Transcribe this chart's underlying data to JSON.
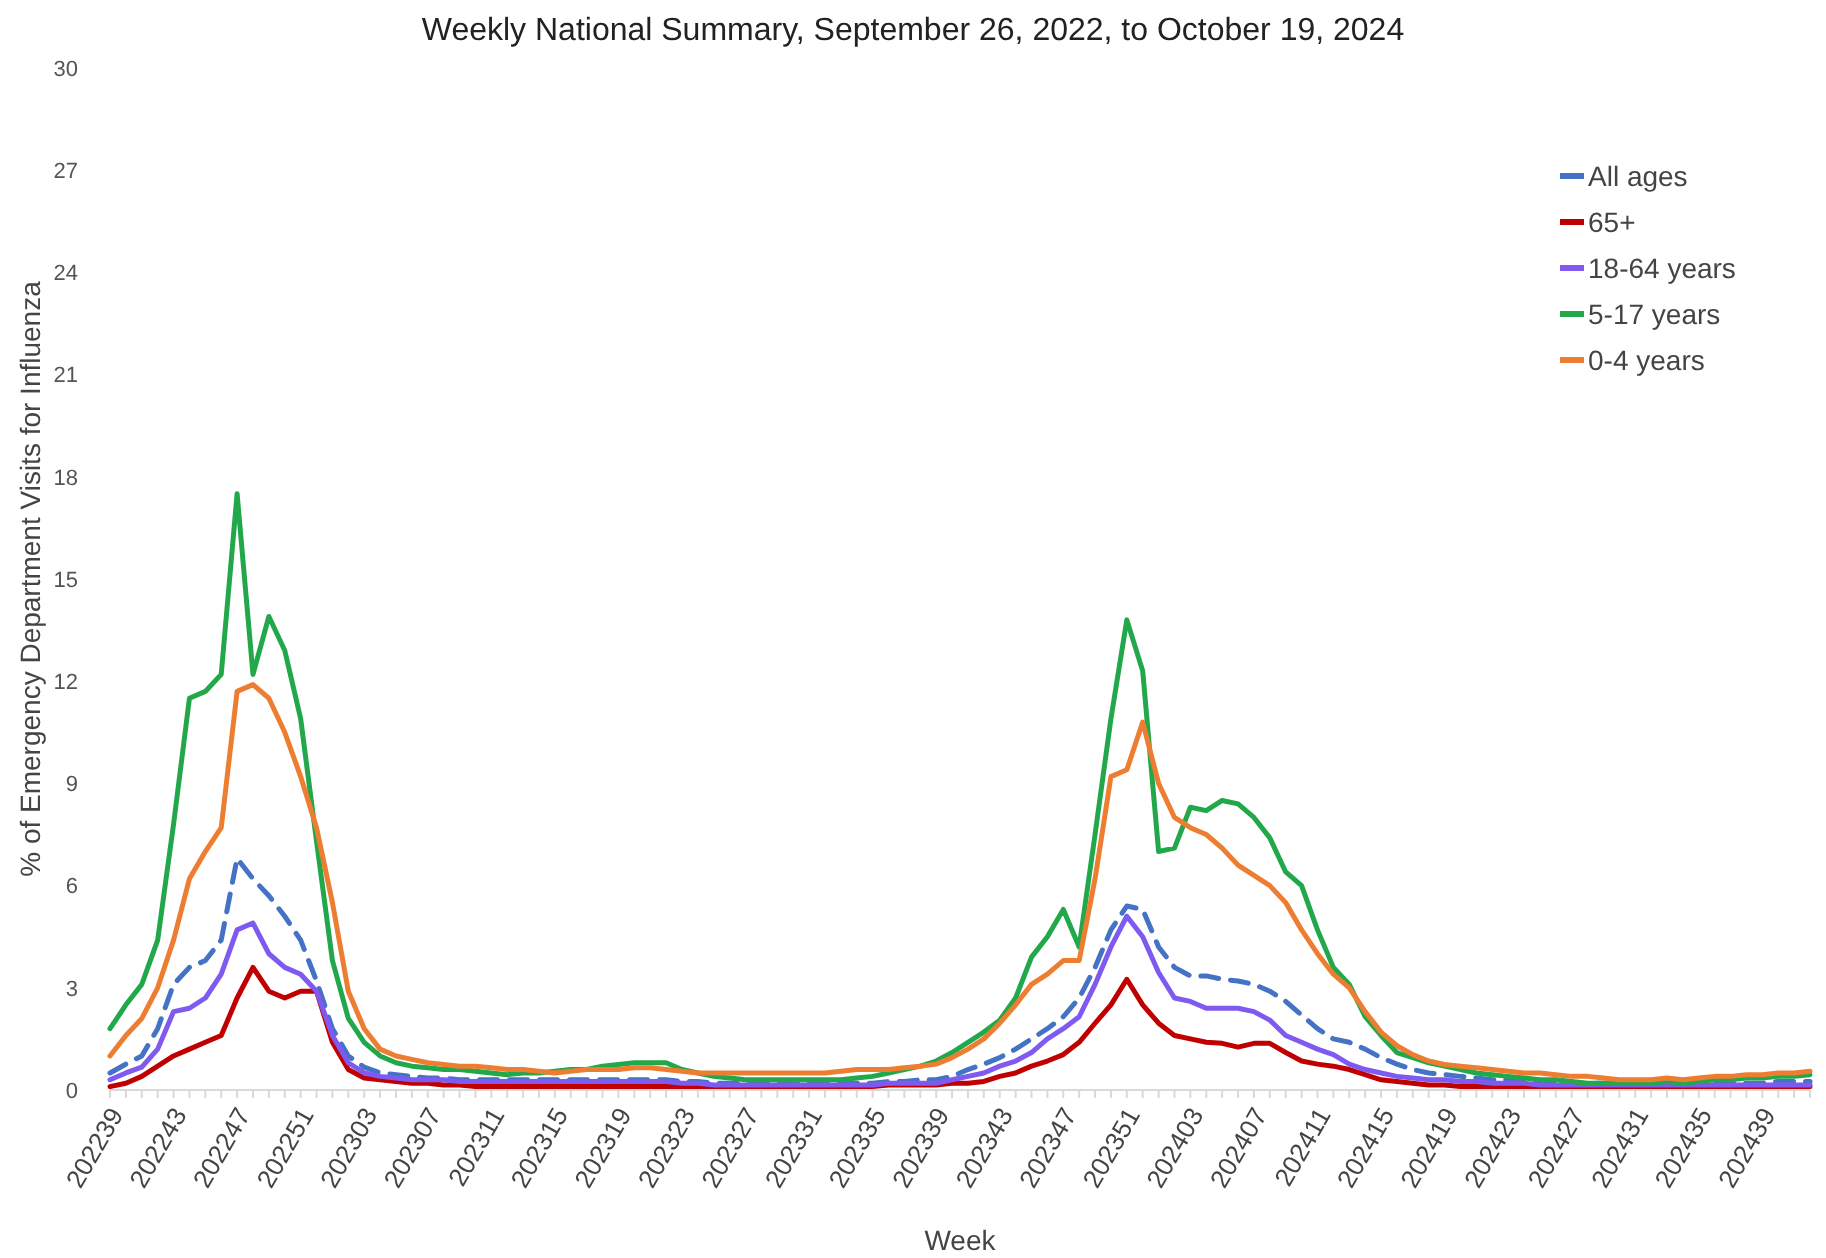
{
  "chart_data": {
    "type": "line",
    "title": "Weekly National Summary, September 26, 2022, to October 19, 2024",
    "xlabel": "Week",
    "ylabel": "% of Emergency Department Visits for Influenza",
    "categories": [
      "202239",
      null,
      null,
      null,
      "202243",
      null,
      null,
      null,
      "202247",
      null,
      null,
      null,
      "202251",
      null,
      null,
      null,
      "202303",
      null,
      null,
      null,
      "202307",
      null,
      null,
      null,
      "202311",
      null,
      null,
      null,
      "202315",
      null,
      null,
      null,
      "202319",
      null,
      null,
      null,
      "202323",
      null,
      null,
      null,
      "202327",
      null,
      null,
      null,
      "202331",
      null,
      null,
      null,
      "202335",
      null,
      null,
      null,
      "202339",
      null,
      null,
      null,
      "202343",
      null,
      null,
      null,
      "202347",
      null,
      null,
      null,
      "202351",
      null,
      null,
      null,
      "202403",
      null,
      null,
      null,
      "202407",
      null,
      null,
      null,
      "202411",
      null,
      null,
      null,
      "202415",
      null,
      null,
      null,
      "202419",
      null,
      null,
      null,
      "202423",
      null,
      null,
      null,
      "202427",
      null,
      null,
      null,
      "202431",
      null,
      null,
      null,
      "202435",
      null,
      null,
      null,
      "202439",
      null,
      null,
      null
    ],
    "ylim": [
      0,
      30
    ],
    "yticks": [
      0,
      3,
      6,
      9,
      12,
      15,
      18,
      21,
      24,
      27,
      30
    ],
    "grid": false,
    "legend": "top right",
    "marker": "none",
    "series": [
      {
        "name": "All ages",
        "color": "#4472c4",
        "line_style": "dashed",
        "values": [
          0.5,
          0.76,
          1.0,
          1.8,
          3.1,
          3.6,
          3.8,
          4.4,
          6.8,
          6.2,
          5.7,
          5.1,
          4.4,
          3.2,
          1.8,
          1.0,
          0.67,
          0.5,
          0.45,
          0.4,
          0.35,
          0.35,
          0.3,
          0.3,
          0.3,
          0.3,
          0.3,
          0.3,
          0.3,
          0.3,
          0.3,
          0.3,
          0.3,
          0.3,
          0.3,
          0.3,
          0.25,
          0.25,
          0.2,
          0.2,
          0.2,
          0.2,
          0.2,
          0.2,
          0.2,
          0.2,
          0.2,
          0.2,
          0.2,
          0.25,
          0.25,
          0.3,
          0.3,
          0.4,
          0.6,
          0.76,
          0.95,
          1.2,
          1.5,
          1.8,
          2.15,
          2.7,
          3.6,
          4.7,
          5.4,
          5.3,
          4.2,
          3.6,
          3.35,
          3.35,
          3.25,
          3.2,
          3.1,
          2.9,
          2.6,
          2.2,
          1.8,
          1.5,
          1.4,
          1.2,
          0.95,
          0.76,
          0.6,
          0.5,
          0.45,
          0.4,
          0.35,
          0.3,
          0.3,
          0.25,
          0.25,
          0.2,
          0.2,
          0.2,
          0.2,
          0.2,
          0.2,
          0.2,
          0.2,
          0.2,
          0.2,
          0.2,
          0.2,
          0.2,
          0.2,
          0.25,
          0.25,
          0.25
        ]
      },
      {
        "name": "65+",
        "color": "#c00000",
        "line_style": "solid",
        "values": [
          0.1,
          0.2,
          0.4,
          0.7,
          1.0,
          1.2,
          1.4,
          1.6,
          2.7,
          3.6,
          2.9,
          2.7,
          2.9,
          2.9,
          1.4,
          0.6,
          0.35,
          0.3,
          0.25,
          0.2,
          0.2,
          0.15,
          0.15,
          0.1,
          0.1,
          0.1,
          0.1,
          0.1,
          0.1,
          0.1,
          0.1,
          0.1,
          0.1,
          0.1,
          0.1,
          0.1,
          0.1,
          0.1,
          0.1,
          0.1,
          0.1,
          0.1,
          0.1,
          0.1,
          0.1,
          0.1,
          0.1,
          0.1,
          0.1,
          0.15,
          0.15,
          0.15,
          0.15,
          0.2,
          0.2,
          0.25,
          0.4,
          0.5,
          0.7,
          0.85,
          1.04,
          1.4,
          1.96,
          2.5,
          3.25,
          2.5,
          1.96,
          1.6,
          1.5,
          1.4,
          1.37,
          1.26,
          1.37,
          1.37,
          1.1,
          0.85,
          0.76,
          0.7,
          0.6,
          0.45,
          0.3,
          0.25,
          0.2,
          0.15,
          0.15,
          0.1,
          0.1,
          0.1,
          0.1,
          0.1,
          0.1,
          0.1,
          0.1,
          0.1,
          0.1,
          0.1,
          0.1,
          0.1,
          0.1,
          0.1,
          0.1,
          0.1,
          0.1,
          0.1,
          0.1,
          0.1,
          0.1,
          0.1
        ]
      },
      {
        "name": "18-64 years",
        "color": "#7f5af0",
        "line_style": "solid",
        "values": [
          0.3,
          0.5,
          0.67,
          1.2,
          2.3,
          2.4,
          2.7,
          3.4,
          4.7,
          4.9,
          4.0,
          3.6,
          3.4,
          2.9,
          1.6,
          0.8,
          0.5,
          0.4,
          0.35,
          0.3,
          0.3,
          0.3,
          0.25,
          0.25,
          0.25,
          0.25,
          0.25,
          0.25,
          0.25,
          0.25,
          0.25,
          0.25,
          0.25,
          0.25,
          0.25,
          0.25,
          0.2,
          0.2,
          0.15,
          0.15,
          0.15,
          0.15,
          0.15,
          0.15,
          0.15,
          0.15,
          0.15,
          0.15,
          0.15,
          0.2,
          0.2,
          0.2,
          0.2,
          0.3,
          0.4,
          0.5,
          0.7,
          0.85,
          1.1,
          1.5,
          1.8,
          2.15,
          3.1,
          4.2,
          5.1,
          4.5,
          3.45,
          2.7,
          2.6,
          2.4,
          2.4,
          2.4,
          2.3,
          2.05,
          1.6,
          1.4,
          1.2,
          1.04,
          0.76,
          0.6,
          0.5,
          0.4,
          0.35,
          0.3,
          0.3,
          0.25,
          0.25,
          0.2,
          0.2,
          0.2,
          0.15,
          0.15,
          0.15,
          0.15,
          0.15,
          0.15,
          0.15,
          0.15,
          0.15,
          0.15,
          0.15,
          0.15,
          0.15,
          0.15,
          0.15,
          0.15,
          0.15,
          0.15
        ]
      },
      {
        "name": "5-17 years",
        "color": "#22a84a",
        "line_style": "solid",
        "values": [
          1.8,
          2.5,
          3.1,
          4.4,
          7.8,
          11.5,
          11.7,
          12.2,
          17.5,
          12.2,
          13.9,
          12.9,
          10.9,
          7.3,
          3.8,
          2.1,
          1.4,
          1.0,
          0.8,
          0.7,
          0.65,
          0.6,
          0.6,
          0.55,
          0.5,
          0.45,
          0.5,
          0.5,
          0.55,
          0.6,
          0.6,
          0.7,
          0.75,
          0.8,
          0.8,
          0.8,
          0.6,
          0.5,
          0.4,
          0.35,
          0.3,
          0.3,
          0.3,
          0.3,
          0.3,
          0.3,
          0.3,
          0.35,
          0.4,
          0.5,
          0.6,
          0.7,
          0.85,
          1.1,
          1.4,
          1.7,
          2.05,
          2.7,
          3.9,
          4.5,
          5.3,
          4.2,
          7.5,
          10.9,
          13.8,
          12.3,
          7.0,
          7.1,
          8.3,
          8.2,
          8.5,
          8.4,
          8.0,
          7.4,
          6.4,
          6.0,
          4.7,
          3.6,
          3.1,
          2.15,
          1.6,
          1.1,
          0.95,
          0.8,
          0.7,
          0.6,
          0.5,
          0.45,
          0.4,
          0.35,
          0.3,
          0.3,
          0.25,
          0.2,
          0.2,
          0.2,
          0.2,
          0.2,
          0.25,
          0.2,
          0.25,
          0.3,
          0.3,
          0.35,
          0.35,
          0.4,
          0.4,
          0.45
        ]
      },
      {
        "name": "0-4 years",
        "color": "#ed7d31",
        "line_style": "solid",
        "values": [
          1.0,
          1.6,
          2.1,
          3.0,
          4.4,
          6.2,
          7.0,
          7.7,
          11.7,
          11.9,
          11.5,
          10.5,
          9.2,
          7.7,
          5.5,
          2.9,
          1.8,
          1.2,
          1.0,
          0.9,
          0.8,
          0.75,
          0.7,
          0.7,
          0.65,
          0.6,
          0.6,
          0.55,
          0.5,
          0.55,
          0.6,
          0.6,
          0.6,
          0.65,
          0.65,
          0.6,
          0.55,
          0.5,
          0.5,
          0.5,
          0.5,
          0.5,
          0.5,
          0.5,
          0.5,
          0.5,
          0.55,
          0.6,
          0.6,
          0.6,
          0.65,
          0.7,
          0.76,
          0.95,
          1.2,
          1.5,
          1.96,
          2.5,
          3.1,
          3.4,
          3.8,
          3.8,
          6.2,
          9.2,
          9.4,
          10.8,
          9.0,
          8.0,
          7.7,
          7.5,
          7.1,
          6.6,
          6.3,
          6.0,
          5.5,
          4.7,
          4.0,
          3.4,
          3.0,
          2.3,
          1.7,
          1.3,
          1.04,
          0.85,
          0.75,
          0.7,
          0.65,
          0.6,
          0.55,
          0.5,
          0.5,
          0.45,
          0.4,
          0.4,
          0.35,
          0.3,
          0.3,
          0.3,
          0.35,
          0.3,
          0.35,
          0.4,
          0.4,
          0.45,
          0.45,
          0.5,
          0.5,
          0.55
        ]
      }
    ]
  }
}
